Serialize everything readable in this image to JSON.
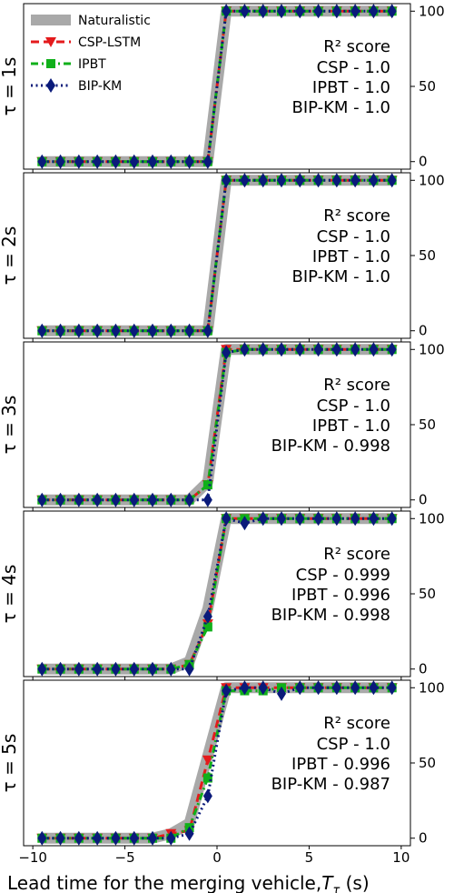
{
  "chart_data": {
    "type": "line",
    "xlabel": "Lead time for the merging vehicle,",
    "xlabel_symbol": "T",
    "xlabel_subscript": "τ",
    "xlabel_unit": " (s)",
    "xlim": [
      -10.5,
      10.5
    ],
    "ylim": [
      -5,
      105
    ],
    "xticks": [
      -10,
      -5,
      0,
      5,
      10
    ],
    "yticks": [
      0,
      50,
      100
    ],
    "y_axis_side": "right",
    "grid": false,
    "legend": {
      "placement": "top-left of first panel",
      "entries": [
        {
          "name": "Naturalistic",
          "color": "#a9a9a9",
          "style": "thick-solid",
          "marker": "none"
        },
        {
          "name": "CSP-LSTM",
          "color": "#e41a1c",
          "style": "dashed",
          "marker": "triangle-down"
        },
        {
          "name": "IPBT",
          "color": "#10b01a",
          "style": "dash-dot",
          "marker": "square"
        },
        {
          "name": "BIP-KM",
          "color": "#0a1a7a",
          "style": "dotted",
          "marker": "diamond"
        }
      ]
    },
    "x": [
      -9.5,
      -8.5,
      -7.5,
      -6.5,
      -5.5,
      -4.5,
      -3.5,
      -2.5,
      -1.5,
      -0.5,
      0.5,
      1.5,
      2.5,
      3.5,
      4.5,
      5.5,
      6.5,
      7.5,
      8.5,
      9.5
    ],
    "panels": [
      {
        "label": "τ = 1s",
        "annotation_title": "R² score",
        "annotation_lines": [
          "CSP - 1.0",
          "IPBT - 1.0",
          "BIP-KM - 1.0"
        ],
        "series": [
          {
            "name": "Naturalistic",
            "values": [
              0,
              0,
              0,
              0,
              0,
              0,
              0,
              0,
              0,
              0,
              100,
              100,
              100,
              100,
              100,
              100,
              100,
              100,
              100,
              100
            ]
          },
          {
            "name": "CSP-LSTM",
            "values": [
              0,
              0,
              0,
              0,
              0,
              0,
              0,
              0,
              0,
              0,
              100,
              100,
              100,
              100,
              100,
              100,
              100,
              100,
              100,
              100
            ]
          },
          {
            "name": "IPBT",
            "values": [
              0,
              0,
              0,
              0,
              0,
              0,
              0,
              0,
              0,
              0,
              100,
              100,
              100,
              100,
              100,
              100,
              100,
              100,
              100,
              100
            ]
          },
          {
            "name": "BIP-KM",
            "values": [
              0,
              0,
              0,
              0,
              0,
              0,
              0,
              0,
              0,
              0,
              100,
              100,
              100,
              100,
              100,
              100,
              100,
              100,
              100,
              100
            ]
          }
        ]
      },
      {
        "label": "τ = 2s",
        "annotation_title": "R² score",
        "annotation_lines": [
          "CSP - 1.0",
          "IPBT - 1.0",
          "BIP-KM - 1.0"
        ],
        "series": [
          {
            "name": "Naturalistic",
            "values": [
              0,
              0,
              0,
              0,
              0,
              0,
              0,
              0,
              0,
              0,
              100,
              100,
              100,
              100,
              100,
              100,
              100,
              100,
              100,
              100
            ]
          },
          {
            "name": "CSP-LSTM",
            "values": [
              0,
              0,
              0,
              0,
              0,
              0,
              0,
              0,
              0,
              0,
              100,
              100,
              100,
              100,
              100,
              100,
              100,
              100,
              100,
              100
            ]
          },
          {
            "name": "IPBT",
            "values": [
              0,
              0,
              0,
              0,
              0,
              0,
              0,
              0,
              0,
              0,
              100,
              100,
              100,
              100,
              100,
              100,
              100,
              100,
              100,
              100
            ]
          },
          {
            "name": "BIP-KM",
            "values": [
              0,
              0,
              0,
              0,
              0,
              0,
              0,
              0,
              0,
              0,
              100,
              100,
              100,
              100,
              100,
              100,
              100,
              100,
              100,
              100
            ]
          }
        ]
      },
      {
        "label": "τ = 3s",
        "annotation_title": "R² score",
        "annotation_lines": [
          "CSP - 1.0",
          "IPBT - 1.0",
          "BIP-KM - 0.998"
        ],
        "series": [
          {
            "name": "Naturalistic",
            "values": [
              0,
              0,
              0,
              0,
              0,
              0,
              0,
              0,
              0,
              12,
              100,
              100,
              100,
              100,
              100,
              100,
              100,
              100,
              100,
              100
            ]
          },
          {
            "name": "CSP-LSTM",
            "values": [
              0,
              0,
              0,
              0,
              0,
              0,
              0,
              0,
              0,
              10,
              100,
              100,
              100,
              100,
              100,
              100,
              100,
              100,
              100,
              100
            ]
          },
          {
            "name": "IPBT",
            "values": [
              0,
              0,
              0,
              0,
              0,
              0,
              0,
              0,
              0,
              10,
              98,
              100,
              100,
              100,
              100,
              100,
              100,
              100,
              100,
              100
            ]
          },
          {
            "name": "BIP-KM",
            "values": [
              0,
              0,
              0,
              0,
              0,
              0,
              0,
              0,
              0,
              0,
              98,
              100,
              100,
              100,
              100,
              100,
              100,
              100,
              100,
              100
            ]
          }
        ]
      },
      {
        "label": "τ = 4s",
        "annotation_title": "R² score",
        "annotation_lines": [
          "CSP - 0.999",
          "IPBT - 0.996",
          "BIP-KM - 0.998"
        ],
        "series": [
          {
            "name": "Naturalistic",
            "values": [
              0,
              0,
              0,
              0,
              0,
              0,
              0,
              0,
              5,
              40,
              100,
              100,
              100,
              100,
              100,
              100,
              100,
              100,
              100,
              100
            ]
          },
          {
            "name": "CSP-LSTM",
            "values": [
              0,
              0,
              0,
              0,
              0,
              0,
              0,
              0,
              3,
              30,
              100,
              100,
              100,
              100,
              100,
              100,
              100,
              100,
              100,
              100
            ]
          },
          {
            "name": "IPBT",
            "values": [
              0,
              0,
              0,
              0,
              0,
              0,
              0,
              0,
              3,
              28,
              100,
              100,
              100,
              100,
              100,
              100,
              100,
              100,
              100,
              100
            ]
          },
          {
            "name": "BIP-KM",
            "values": [
              0,
              0,
              0,
              0,
              0,
              0,
              0,
              0,
              0,
              35,
              100,
              97,
              100,
              100,
              100,
              100,
              100,
              100,
              100,
              100
            ]
          }
        ]
      },
      {
        "label": "τ = 5s",
        "annotation_title": "R² score",
        "annotation_lines": [
          "CSP - 1.0",
          "IPBT - 0.996",
          "BIP-KM - 0.987"
        ],
        "series": [
          {
            "name": "Naturalistic",
            "values": [
              0,
              0,
              0,
              0,
              0,
              0,
              0,
              3,
              10,
              55,
              100,
              100,
              100,
              100,
              100,
              100,
              100,
              100,
              100,
              100
            ]
          },
          {
            "name": "CSP-LSTM",
            "values": [
              0,
              0,
              0,
              0,
              0,
              0,
              0,
              3,
              5,
              52,
              100,
              100,
              100,
              100,
              100,
              100,
              100,
              100,
              100,
              100
            ]
          },
          {
            "name": "IPBT",
            "values": [
              0,
              0,
              0,
              0,
              0,
              0,
              0,
              0,
              7,
              40,
              98,
              98,
              98,
              100,
              100,
              100,
              100,
              100,
              100,
              100
            ]
          },
          {
            "name": "BIP-KM",
            "values": [
              0,
              0,
              0,
              0,
              0,
              0,
              0,
              0,
              3,
              28,
              98,
              100,
              100,
              96,
              100,
              100,
              100,
              100,
              100,
              100
            ]
          }
        ]
      }
    ]
  }
}
